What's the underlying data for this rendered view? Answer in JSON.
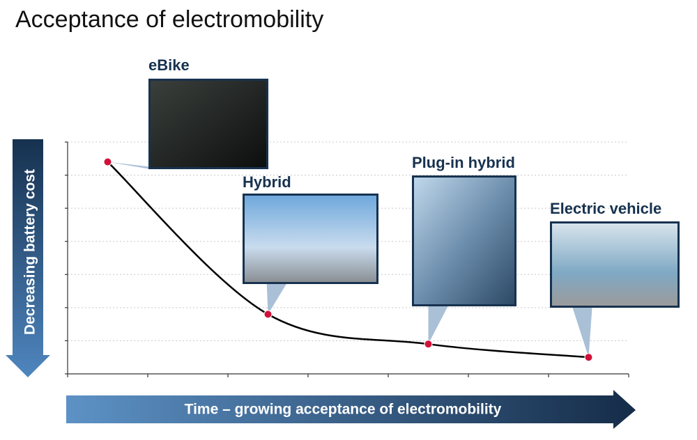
{
  "chart_data": {
    "type": "line",
    "title": "Acceptance of electromobility",
    "y_label": "Decreasing battery cost",
    "x_label": "Time – growing acceptance of electromobility",
    "labels": [
      "eBike",
      "Hybrid",
      "Plug-in hybrid",
      "Electric vehicle"
    ],
    "x": [
      0.5,
      2.5,
      4.5,
      6.5
    ],
    "values": [
      6.4,
      1.8,
      0.9,
      0.5
    ],
    "color": "#000000",
    "marker_color": "#d0123a",
    "xlim": [
      0,
      7
    ],
    "ylim": [
      0,
      7
    ],
    "xticks": [
      0,
      1,
      2,
      3,
      4,
      5,
      6,
      7
    ],
    "yticks": [
      0,
      1,
      2,
      3,
      4,
      5,
      6,
      7
    ],
    "grid": true
  }
}
